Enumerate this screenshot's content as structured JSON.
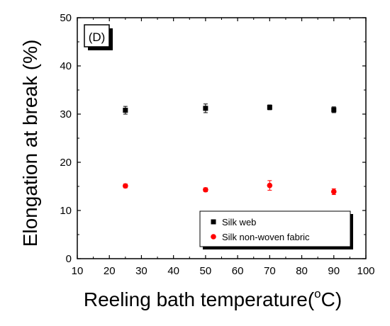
{
  "chart_data": {
    "type": "scatter",
    "panel_label": "(D)",
    "title": "",
    "xlabel": "Reeling bath temperature(",
    "xlabel_sup": "o",
    "xlabel_tail": "C)",
    "ylabel": "Elongation at break (%)",
    "xlim": [
      10,
      100
    ],
    "ylim": [
      0,
      50
    ],
    "xticks": [
      10,
      20,
      30,
      40,
      50,
      60,
      70,
      80,
      90,
      100
    ],
    "yticks": [
      0,
      10,
      20,
      30,
      40,
      50
    ],
    "grid": false,
    "legend_position": "bottom-right",
    "series": [
      {
        "name": "Silk web",
        "marker": "square",
        "color": "#000000",
        "x": [
          25,
          50,
          70,
          90
        ],
        "y": [
          30.8,
          31.2,
          31.4,
          30.9
        ],
        "error": [
          0.8,
          0.9,
          0.5,
          0.6
        ]
      },
      {
        "name": "Silk non-woven fabric",
        "marker": "circle",
        "color": "#ff0000",
        "x": [
          25,
          50,
          70,
          90
        ],
        "y": [
          15.1,
          14.3,
          15.2,
          13.9
        ],
        "error": [
          0.4,
          0.4,
          1.0,
          0.6
        ]
      }
    ]
  }
}
